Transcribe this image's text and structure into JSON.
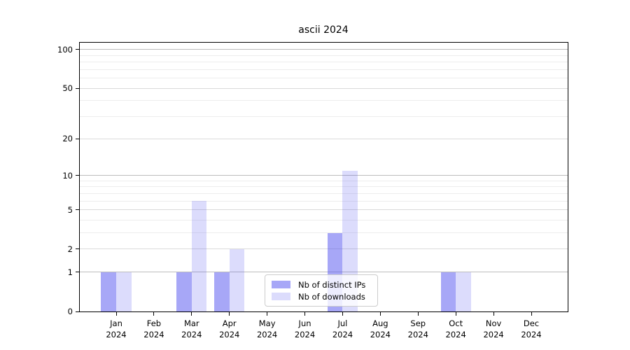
{
  "title": "ascii 2024",
  "chart_data": {
    "type": "bar",
    "title": "ascii 2024",
    "categories": [
      "Jan",
      "Feb",
      "Mar",
      "Apr",
      "May",
      "Jun",
      "Jul",
      "Aug",
      "Sep",
      "Oct",
      "Nov",
      "Dec"
    ],
    "category_year": "2024",
    "series": [
      {
        "name": "Nb of distinct IPs",
        "color": "rgba(80,80,240,0.5)",
        "values": [
          1,
          0,
          1,
          1,
          0,
          0,
          3,
          0,
          0,
          1,
          0,
          0
        ]
      },
      {
        "name": "Nb of downloads",
        "color": "rgba(80,80,240,0.2)",
        "values": [
          1,
          0,
          6,
          2,
          0,
          0,
          11,
          0,
          0,
          1,
          0,
          0
        ]
      }
    ],
    "xlabel": "",
    "ylabel": "",
    "y_scale": "log10(1+x)",
    "y_ticks": [
      0,
      1,
      2,
      5,
      10,
      20,
      50,
      100
    ],
    "y_minor_ticks": [
      3,
      4,
      6,
      7,
      8,
      9,
      30,
      40,
      60,
      70,
      80,
      90
    ],
    "ylim": [
      0,
      113
    ],
    "grid": "horizontal, major and minor",
    "legend_position": "lower center"
  }
}
